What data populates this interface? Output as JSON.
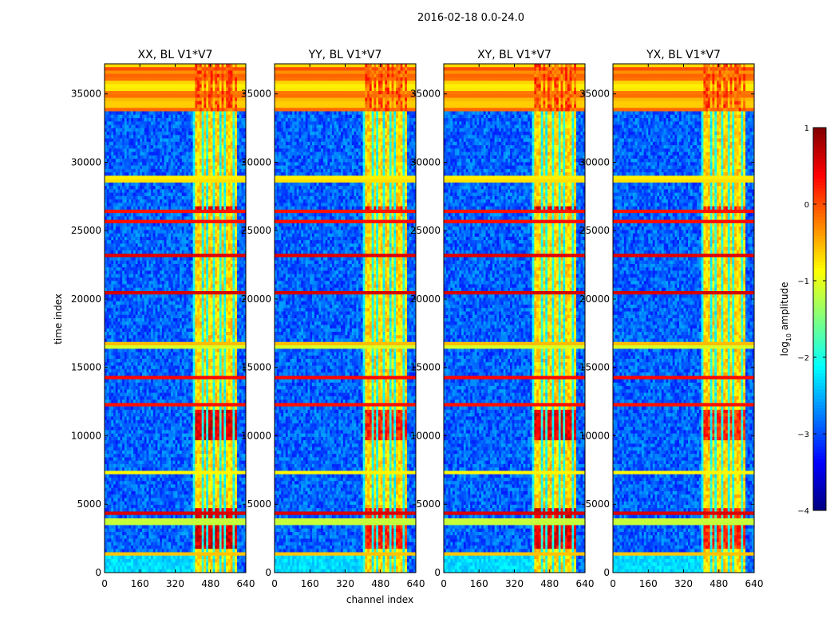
{
  "chart_data": {
    "type": "heatmap",
    "suptitle": "2016-02-18 0.0-24.0",
    "xlabel": "channel index",
    "ylabel": "time index",
    "xlim": [
      0,
      640
    ],
    "ylim": [
      0,
      37200
    ],
    "xticks": [
      0,
      160,
      320,
      480,
      640
    ],
    "yticks": [
      0,
      5000,
      10000,
      15000,
      20000,
      25000,
      30000,
      35000
    ],
    "colorbar": {
      "label": "log10 amplitude",
      "label_base": "log",
      "label_sub": "10",
      "label_rest": " amplitude",
      "range": [
        -4,
        1
      ],
      "ticks": [
        1,
        0,
        -1,
        -2,
        -3,
        -4
      ],
      "tick_labels": [
        "1",
        "0",
        "−1",
        "−2",
        "−3",
        "−4"
      ],
      "colormap": "jet"
    },
    "panels": [
      {
        "title": "XX, BL V1*V7",
        "pol": "XX",
        "strength": 1.0
      },
      {
        "title": "YY, BL V1*V7",
        "pol": "YY",
        "strength": 0.78
      },
      {
        "title": "XY, BL V1*V7",
        "pol": "XY",
        "strength": 0.95
      },
      {
        "title": "YX, BL V1*V7",
        "pol": "YX",
        "strength": 0.72
      }
    ],
    "signal_band_channels": [
      405,
      600
    ],
    "signal_columns": [
      [
        410,
        440
      ],
      [
        448,
        458
      ],
      [
        468,
        490
      ],
      [
        498,
        520
      ],
      [
        530,
        540
      ],
      [
        548,
        580
      ],
      [
        588,
        598
      ]
    ],
    "hot_time_ranges": [
      [
        9600,
        11800
      ],
      [
        26200,
        26800
      ],
      [
        1800,
        4600
      ]
    ],
    "flagged_top_rows": [
      33800,
      37200
    ]
  }
}
